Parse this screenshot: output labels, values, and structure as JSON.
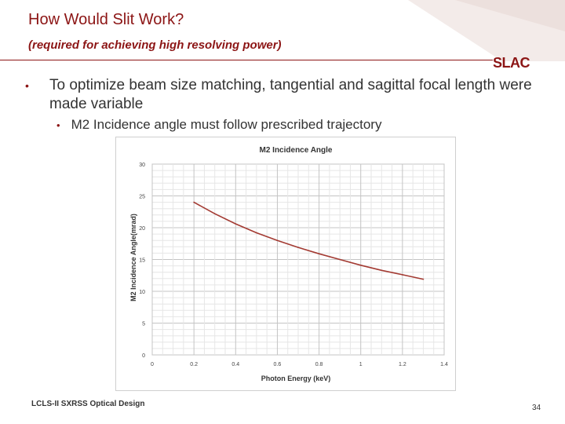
{
  "slide": {
    "title": "How Would Slit Work?",
    "subtitle": "(required for achieving high resolving power)",
    "logo": "SLAC",
    "bullet_main": "To optimize beam size matching, tangential and sagittal focal length were made variable",
    "bullet_sub": "M2 Incidence angle must follow prescribed trajectory",
    "footer": "LCLS-II SXRSS Optical Design",
    "page_number": "34",
    "colors": {
      "accent": "#8c1515",
      "line": "#a33a32",
      "text": "#333333"
    }
  },
  "chart_data": {
    "type": "line",
    "title": "M2 Incidence Angle",
    "xlabel": "Photon Energy (keV)",
    "ylabel": "M2 Incidence Angle(mrad)",
    "xlim": [
      0,
      1.4
    ],
    "ylim": [
      0,
      30
    ],
    "xticks": [
      "0",
      "0.2",
      "0.4",
      "0.6",
      "0.8",
      "1",
      "1.2",
      "1.4"
    ],
    "yticks": [
      "0",
      "5",
      "10",
      "15",
      "20",
      "25",
      "30"
    ],
    "grid": true,
    "series": [
      {
        "x": [
          0.2,
          0.3,
          0.4,
          0.5,
          0.6,
          0.7,
          0.8,
          0.9,
          1.0,
          1.1,
          1.2,
          1.3
        ],
        "values": [
          24.0,
          22.2,
          20.6,
          19.2,
          18.0,
          16.9,
          15.9,
          15.0,
          14.1,
          13.3,
          12.6,
          11.9
        ]
      }
    ]
  }
}
